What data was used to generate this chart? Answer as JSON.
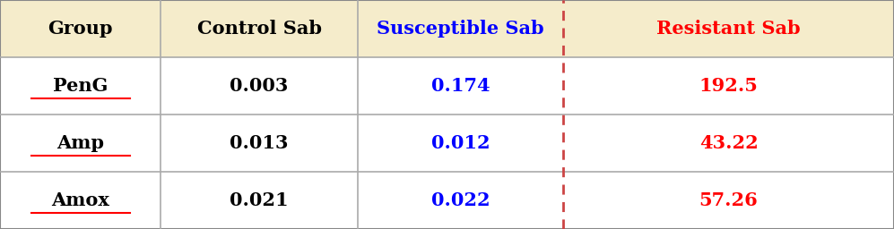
{
  "headers": [
    "Group",
    "Control Sab",
    "Susceptible Sab",
    "Resistant Sab"
  ],
  "header_colors": [
    "black",
    "black",
    "blue",
    "red"
  ],
  "rows": [
    [
      "PenG",
      "0.003",
      "0.174",
      "192.5"
    ],
    [
      "Amp",
      "0.013",
      "0.012",
      "43.22"
    ],
    [
      "Amox",
      "0.021",
      "0.022",
      "57.26"
    ]
  ],
  "row_colors": [
    [
      "black",
      "black",
      "blue",
      "red"
    ],
    [
      "black",
      "black",
      "blue",
      "red"
    ],
    [
      "black",
      "black",
      "blue",
      "red"
    ]
  ],
  "header_bg": "#f5eccb",
  "row_bg": "#ffffff",
  "border_color": "#aaaaaa",
  "dashed_line_color": "#cc4444",
  "underline_color": "red",
  "fig_width": 9.97,
  "fig_height": 2.56,
  "dpi": 100
}
